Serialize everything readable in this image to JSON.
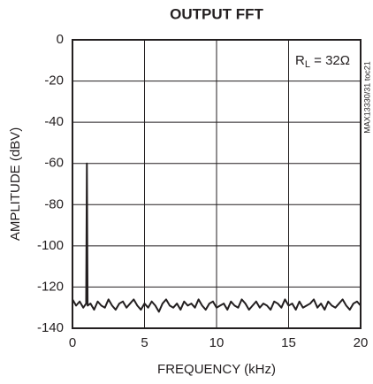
{
  "chart_data": {
    "type": "line",
    "title": "OUTPUT FFT",
    "x_label": "FREQUENCY (kHz)",
    "y_label": "AMPLITUDE (dBV)",
    "annotation_parts": [
      "R",
      "L",
      " = 32Ω"
    ],
    "side_note": "MAX13330/31 toc21",
    "x": [
      0,
      0.25,
      0.5,
      0.75,
      0.95,
      1,
      1.05,
      1.25,
      1.5,
      1.75,
      2,
      2.25,
      2.5,
      2.75,
      3,
      3.25,
      3.5,
      3.75,
      4,
      4.25,
      4.5,
      4.75,
      5,
      5.25,
      5.5,
      5.75,
      6,
      6.25,
      6.5,
      6.75,
      7,
      7.25,
      7.5,
      7.75,
      8,
      8.25,
      8.5,
      8.75,
      9,
      9.25,
      9.5,
      9.75,
      10,
      10.25,
      10.5,
      10.75,
      11,
      11.25,
      11.5,
      11.75,
      12,
      12.25,
      12.5,
      12.75,
      13,
      13.25,
      13.5,
      13.75,
      14,
      14.25,
      14.5,
      14.75,
      15,
      15.25,
      15.5,
      15.75,
      16,
      16.25,
      16.5,
      16.75,
      17,
      17.25,
      17.5,
      17.75,
      18,
      18.25,
      18.5,
      18.75,
      19,
      19.25,
      19.5,
      19.75,
      20
    ],
    "series": [
      {
        "name": "FFT",
        "color": "#231f20",
        "values": [
          -126,
          -129,
          -127,
          -130,
          -128,
          -60,
          -129,
          -128,
          -131,
          -127,
          -129,
          -130,
          -126,
          -129,
          -131,
          -128,
          -127,
          -130,
          -128,
          -126,
          -129,
          -131,
          -128,
          -130,
          -127,
          -129,
          -132,
          -128,
          -126,
          -129,
          -130,
          -128,
          -131,
          -127,
          -129,
          -128,
          -130,
          -126,
          -129,
          -131,
          -128,
          -127,
          -130,
          -129,
          -128,
          -131,
          -127,
          -129,
          -130,
          -126,
          -128,
          -131,
          -129,
          -127,
          -130,
          -128,
          -129,
          -131,
          -127,
          -128,
          -130,
          -126,
          -129,
          -128,
          -131,
          -127,
          -130,
          -129,
          -128,
          -126,
          -130,
          -128,
          -131,
          -127,
          -129,
          -130,
          -128,
          -126,
          -129,
          -131,
          -128,
          -127,
          -129
        ]
      }
    ],
    "xlim": [
      0,
      20
    ],
    "ylim": [
      -140,
      0
    ],
    "xticks": [
      0,
      5,
      10,
      15,
      20
    ],
    "yticks": [
      -140,
      -120,
      -100,
      -80,
      -60,
      -40,
      -20,
      0
    ],
    "grid": true
  }
}
